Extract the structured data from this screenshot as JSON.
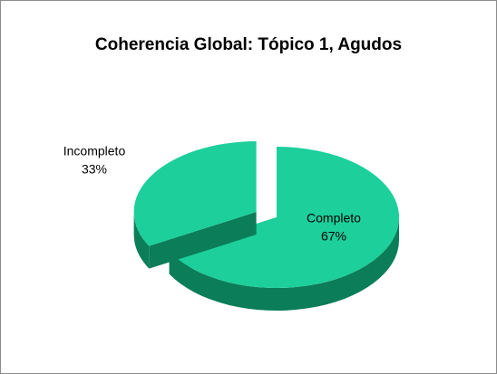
{
  "chart_data": {
    "type": "pie",
    "title": "Coherencia Global: Tópico 1, Agudos",
    "categories": [
      "Completo",
      "Incompleto"
    ],
    "values": [
      67,
      33
    ],
    "value_labels": [
      "67%",
      "33%"
    ],
    "color": "#1ccf9b",
    "side_color": "#0b7d58",
    "exploded": "Incompleto"
  }
}
